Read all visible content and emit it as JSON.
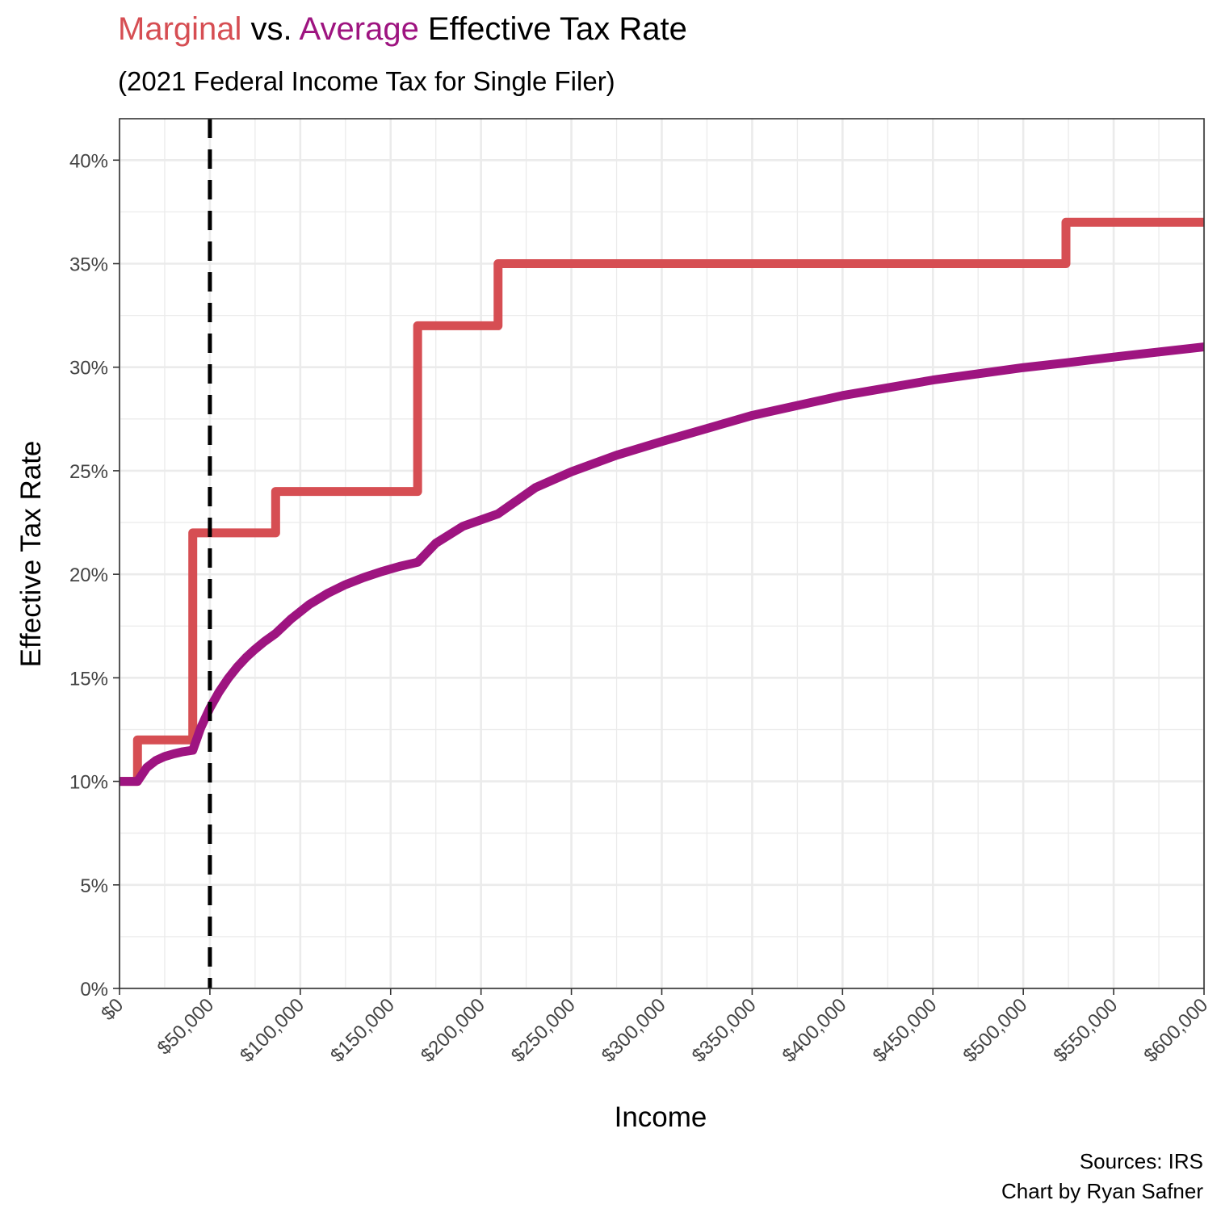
{
  "header": {
    "title_marginal": "Marginal",
    "title_vs": " vs. ",
    "title_average": "Average",
    "title_rest": " Effective Tax Rate",
    "subtitle": "(2021 Federal Income Tax for Single Filer)"
  },
  "caption": {
    "line1": "Sources: IRS",
    "line2": "Chart by Ryan Safner"
  },
  "colors": {
    "marginal": "#d64e53",
    "average": "#9e1480",
    "reference_line": "#000000",
    "grid": "#ebebeb",
    "axis_text": "#444444"
  },
  "chart_data": {
    "type": "line",
    "title": "Marginal vs. Average Effective Tax Rate",
    "subtitle": "(2021 Federal Income Tax for Single Filer)",
    "xlabel": "Income",
    "ylabel": "Effective Tax Rate",
    "xlim": [
      0,
      600000
    ],
    "ylim": [
      0,
      0.42
    ],
    "x_ticks": [
      0,
      50000,
      100000,
      150000,
      200000,
      250000,
      300000,
      350000,
      400000,
      450000,
      500000,
      550000,
      600000
    ],
    "x_tick_labels": [
      "$0",
      "$50,000",
      "$100,000",
      "$150,000",
      "$200,000",
      "$250,000",
      "$300,000",
      "$350,000",
      "$400,000",
      "$450,000",
      "$500,000",
      "$550,000",
      "$600,000"
    ],
    "y_ticks": [
      0,
      0.05,
      0.1,
      0.15,
      0.2,
      0.25,
      0.3,
      0.35,
      0.4
    ],
    "y_tick_labels": [
      "0%",
      "5%",
      "10%",
      "15%",
      "20%",
      "25%",
      "30%",
      "35%",
      "40%"
    ],
    "grid": true,
    "reference_line": {
      "x": 50000,
      "style": "dashed"
    },
    "series": [
      {
        "key": "marginal",
        "step": true,
        "x": [
          0,
          9950,
          40525,
          86375,
          164925,
          209425,
          523600,
          600000
        ],
        "y": [
          0.1,
          0.12,
          0.22,
          0.24,
          0.32,
          0.35,
          0.37,
          0.37
        ]
      },
      {
        "key": "average",
        "step": false,
        "x": [
          0,
          9950,
          15000,
          20000,
          25000,
          30000,
          35000,
          40525,
          45000,
          50000,
          55000,
          60000,
          65000,
          70000,
          75000,
          80000,
          86375,
          95000,
          105000,
          115000,
          125000,
          135000,
          145000,
          155000,
          164925,
          175000,
          190000,
          209425,
          230000,
          250000,
          275000,
          300000,
          350000,
          400000,
          450000,
          500000,
          523600,
          550000,
          600000
        ],
        "y": [
          0.1,
          0.1,
          0.1066,
          0.11,
          0.112,
          0.1133,
          0.1143,
          0.115,
          0.126,
          0.1354,
          0.1431,
          0.1496,
          0.1551,
          0.1598,
          0.1638,
          0.1674,
          0.1714,
          0.1785,
          0.1854,
          0.1907,
          0.195,
          0.1984,
          0.2013,
          0.2038,
          0.2058,
          0.215,
          0.2232,
          0.2292,
          0.2418,
          0.2495,
          0.2575,
          0.2641,
          0.2767,
          0.2863,
          0.2938,
          0.2998,
          0.3021,
          0.3049,
          0.3098
        ]
      }
    ]
  }
}
